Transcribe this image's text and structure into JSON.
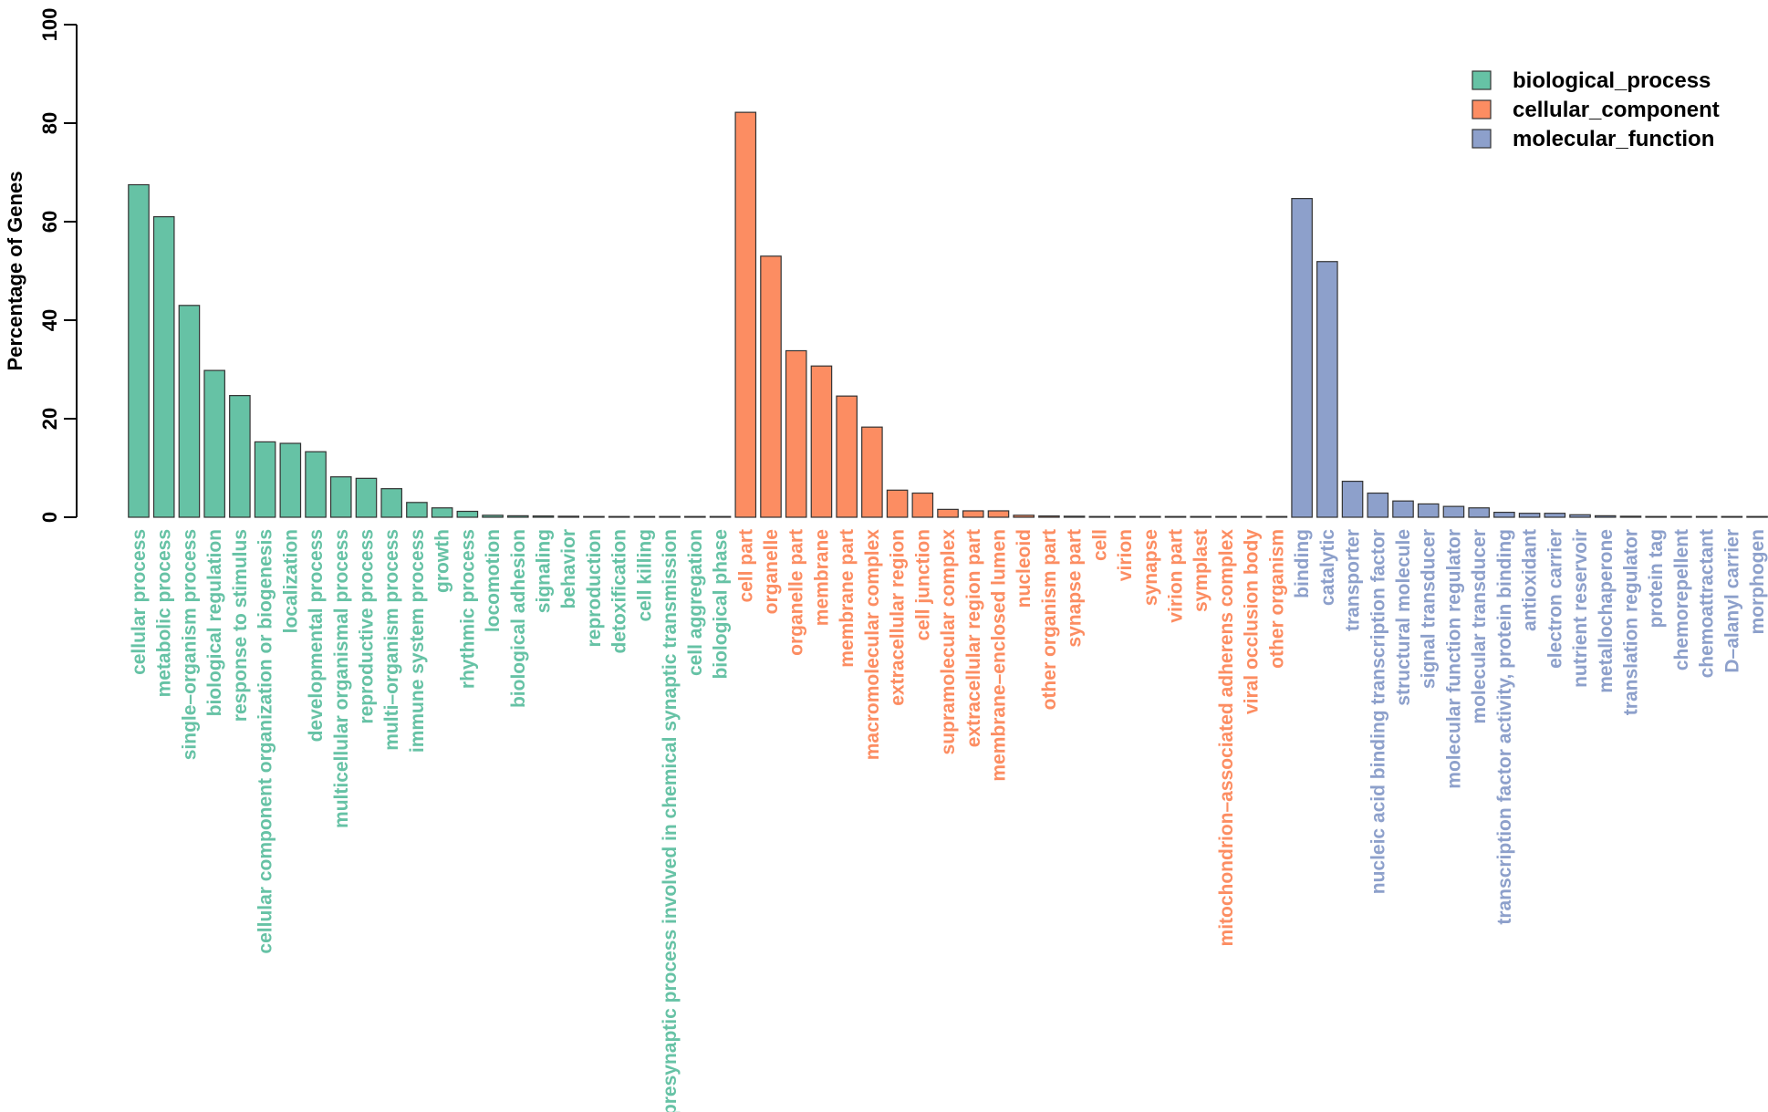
{
  "chart_data": {
    "type": "bar",
    "title": "",
    "xlabel": "",
    "ylabel": "Percentage of Genes",
    "ylim": [
      0,
      100
    ],
    "yticks": [
      0,
      20,
      40,
      60,
      80,
      100
    ],
    "grid": false,
    "legend_position": "top-right",
    "colors": {
      "biological_process": "#66c2a5",
      "cellular_component": "#fc8d62",
      "molecular_function": "#8da0cb"
    },
    "legend": [
      {
        "name": "biological_process",
        "color": "#66c2a5"
      },
      {
        "name": "cellular_component",
        "color": "#fc8d62"
      },
      {
        "name": "molecular_function",
        "color": "#8da0cb"
      }
    ],
    "series": [
      {
        "name": "biological_process",
        "categories": [
          "cellular process",
          "metabolic process",
          "single–organism process",
          "biological regulation",
          "response to stimulus",
          "cellular component organization or biogenesis",
          "localization",
          "developmental process",
          "multicellular organismal process",
          "reproductive process",
          "multi–organism process",
          "immune system process",
          "growth",
          "rhythmic process",
          "locomotion",
          "biological adhesion",
          "signaling",
          "behavior",
          "reproduction",
          "detoxification",
          "cell killing",
          "presynaptic process involved in chemical synaptic transmission",
          "cell aggregation",
          "biological phase"
        ],
        "values": [
          67.5,
          61.0,
          43.0,
          29.8,
          24.7,
          15.3,
          15.0,
          13.3,
          8.2,
          7.9,
          5.8,
          3.0,
          1.9,
          1.2,
          0.4,
          0.3,
          0.25,
          0.2,
          0.15,
          0.1,
          0.1,
          0.1,
          0.05,
          0.05
        ]
      },
      {
        "name": "cellular_component",
        "categories": [
          "cell part",
          "organelle",
          "organelle part",
          "membrane",
          "membrane part",
          "macromolecular complex",
          "extracellular region",
          "cell junction",
          "supramolecular complex",
          "extracellular region part",
          "membrane–enclosed lumen",
          "nucleoid",
          "other organism part",
          "synapse part",
          "cell",
          "virion",
          "synapse",
          "virion part",
          "symplast",
          "mitochondrion–associated adherens complex",
          "viral occlusion body",
          "other organism"
        ],
        "values": [
          82.2,
          53.0,
          33.8,
          30.7,
          24.6,
          18.3,
          5.5,
          4.9,
          1.6,
          1.3,
          1.3,
          0.4,
          0.25,
          0.2,
          0.15,
          0.15,
          0.1,
          0.1,
          0.1,
          0.05,
          0.05,
          0.05
        ]
      },
      {
        "name": "molecular_function",
        "categories": [
          "binding",
          "catalytic",
          "transporter",
          "nucleic acid binding transcription factor",
          "structural molecule",
          "signal transducer",
          "molecular function regulator",
          "molecular transducer",
          "transcription factor activity, protein binding",
          "antioxidant",
          "electron carrier",
          "nutrient reservoir",
          "metallochaperone",
          "translation regulator",
          "protein tag",
          "chemorepellent",
          "chemoattractant",
          "D–alanyl carrier",
          "morphogen"
        ],
        "values": [
          64.7,
          51.9,
          7.3,
          4.9,
          3.3,
          2.7,
          2.2,
          1.9,
          1.0,
          0.8,
          0.8,
          0.5,
          0.3,
          0.2,
          0.15,
          0.1,
          0.1,
          0.05,
          0.05
        ]
      }
    ]
  }
}
